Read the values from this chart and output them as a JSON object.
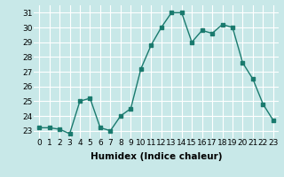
{
  "x": [
    0,
    1,
    2,
    3,
    4,
    5,
    6,
    7,
    8,
    9,
    10,
    11,
    12,
    13,
    14,
    15,
    16,
    17,
    18,
    19,
    20,
    21,
    22,
    23
  ],
  "y": [
    23.2,
    23.2,
    23.1,
    22.8,
    25.0,
    25.2,
    23.2,
    23.0,
    24.0,
    24.5,
    27.2,
    28.8,
    30.0,
    31.0,
    31.0,
    29.0,
    29.8,
    29.6,
    30.2,
    30.0,
    27.6,
    26.5,
    24.8,
    23.7
  ],
  "xlabel": "Humidex (Indice chaleur)",
  "ylim": [
    22.5,
    31.5
  ],
  "xlim": [
    -0.5,
    23.5
  ],
  "yticks": [
    23,
    24,
    25,
    26,
    27,
    28,
    29,
    30,
    31
  ],
  "xticks": [
    0,
    1,
    2,
    3,
    4,
    5,
    6,
    7,
    8,
    9,
    10,
    11,
    12,
    13,
    14,
    15,
    16,
    17,
    18,
    19,
    20,
    21,
    22,
    23
  ],
  "line_color": "#1a7a6e",
  "marker_color": "#1a7a6e",
  "bg_color": "#c8e8e8",
  "grid_color": "#ffffff",
  "xlabel_fontsize": 7.5,
  "tick_fontsize": 6.5
}
